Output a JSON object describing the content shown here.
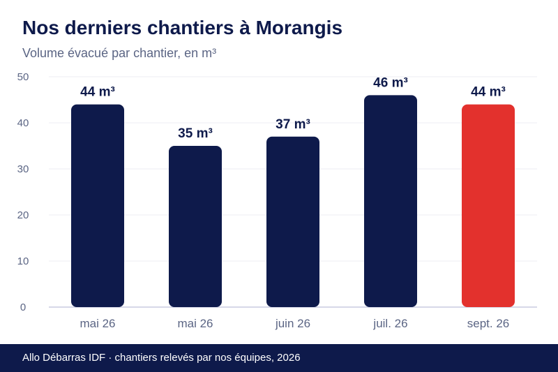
{
  "header": {
    "title": "Nos derniers chantiers à Morangis",
    "subtitle": "Volume évacué par chantier, en m³"
  },
  "chart_data": {
    "type": "bar",
    "categories": [
      "mai 26",
      "mai 26",
      "juin 26",
      "juil. 26",
      "sept. 26"
    ],
    "values": [
      44,
      35,
      37,
      46,
      44
    ],
    "value_labels": [
      "44 m³",
      "35 m³",
      "37 m³",
      "46 m³",
      "44 m³"
    ],
    "ylim": [
      0,
      50
    ],
    "yticks": [
      "0",
      "10",
      "20",
      "30",
      "40",
      "50"
    ],
    "grid": true,
    "colors": {
      "bar": "#0e1a4b",
      "highlight": "#e3312d",
      "grid": "#eceef3",
      "axis": "#c9cce0",
      "tick_text": "#5b6584",
      "label_text": "#0e1a4b"
    },
    "highlight_index": 4
  },
  "footer": {
    "text": "Allo Débarras IDF · chantiers relevés par nos équipes, 2026"
  }
}
